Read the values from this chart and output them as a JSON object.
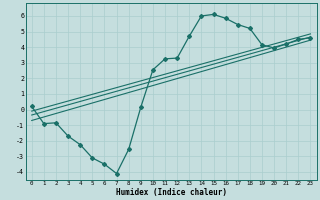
{
  "xlabel": "Humidex (Indice chaleur)",
  "ylabel": "",
  "xlim": [
    -0.5,
    23.5
  ],
  "ylim": [
    -4.5,
    6.8
  ],
  "xticks": [
    0,
    1,
    2,
    3,
    4,
    5,
    6,
    7,
    8,
    9,
    10,
    11,
    12,
    13,
    14,
    15,
    16,
    17,
    18,
    19,
    20,
    21,
    22,
    23
  ],
  "yticks": [
    -4,
    -3,
    -2,
    -1,
    0,
    1,
    2,
    3,
    4,
    5,
    6
  ],
  "background_color": "#c5dede",
  "grid_color": "#aacece",
  "line_color": "#1a7068",
  "line1_x": [
    0,
    1,
    2,
    3,
    4,
    5,
    6,
    7,
    8,
    9,
    10,
    11,
    12,
    13,
    14,
    15,
    16,
    17,
    18,
    19,
    20,
    21,
    22,
    23
  ],
  "line1_y": [
    0.2,
    -0.9,
    -0.85,
    -1.7,
    -2.25,
    -3.1,
    -3.5,
    -4.1,
    -2.55,
    0.15,
    2.55,
    3.25,
    3.3,
    4.7,
    6.0,
    6.1,
    5.85,
    5.45,
    5.2,
    4.15,
    3.95,
    4.2,
    4.5,
    4.6
  ],
  "line2_x": [
    0,
    23
  ],
  "line2_y": [
    -0.7,
    4.45
  ],
  "line3_x": [
    0,
    23
  ],
  "line3_y": [
    -0.35,
    4.65
  ],
  "line4_x": [
    0,
    23
  ],
  "line4_y": [
    -0.1,
    4.85
  ]
}
